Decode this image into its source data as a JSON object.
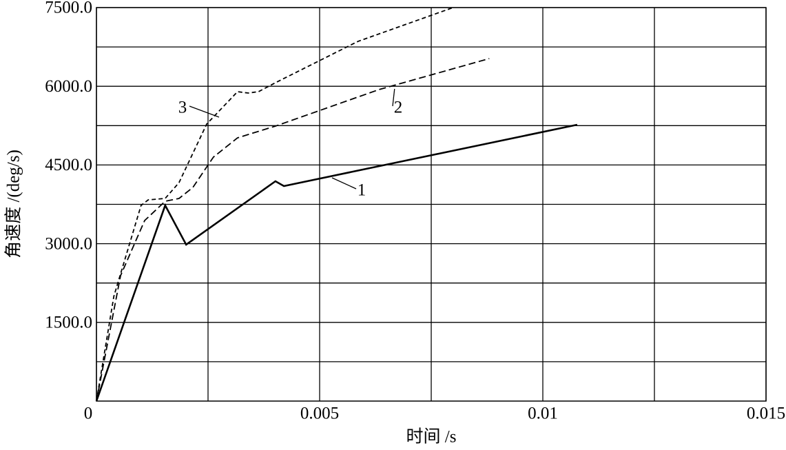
{
  "chart_data": {
    "type": "line",
    "x_label": "时间 /s",
    "y_label": "角速度 /(deg/s)",
    "xlim": [
      0,
      0.015
    ],
    "ylim": [
      0,
      7500
    ],
    "xticks": [
      0,
      0.005,
      0.01,
      0.015
    ],
    "yticks": [
      {
        "value": 1500,
        "label": "1500.0"
      },
      {
        "value": 3000,
        "label": "3000.0"
      },
      {
        "value": 4500,
        "label": "4500.0"
      },
      {
        "value": 6000,
        "label": "6000.0"
      },
      {
        "value": 7500,
        "label": "7500.0"
      }
    ],
    "xgrid": [
      0.0025,
      0.0075,
      0.0125
    ],
    "ygrid": [
      750,
      2250,
      3750,
      5250,
      6750
    ],
    "grid": true,
    "series": [
      {
        "name": "1",
        "color": "#000000",
        "linestyle": "solid",
        "x": [
          0,
          0.00154,
          0.00201,
          0.00401,
          0.0042,
          0.01077
        ],
        "values": [
          0,
          3730,
          2982,
          4190,
          4098,
          5267
        ]
      },
      {
        "name": "2",
        "color": "#000000",
        "linestyle": "dashed",
        "x": [
          0,
          0.00054,
          0.00108,
          0.00154,
          0.00185,
          0.00216,
          0.00262,
          0.00316,
          0.00401,
          0.00633,
          0.0088
        ],
        "values": [
          0,
          2390,
          3441,
          3809,
          3862,
          4072,
          4650,
          5017,
          5241,
          5937,
          6528
        ]
      },
      {
        "name": "3",
        "color": "#000000",
        "linestyle": "dotted",
        "x": [
          0,
          0.00039,
          0.001,
          0.00116,
          0.00154,
          0.00185,
          0.00247,
          0.00316,
          0.0034,
          0.00363,
          0.00401,
          0.00586,
          0.00799
        ],
        "values": [
          0,
          1997,
          3730,
          3835,
          3862,
          4164,
          5280,
          5897,
          5871,
          5897,
          6068,
          6856,
          7500
        ]
      }
    ]
  }
}
